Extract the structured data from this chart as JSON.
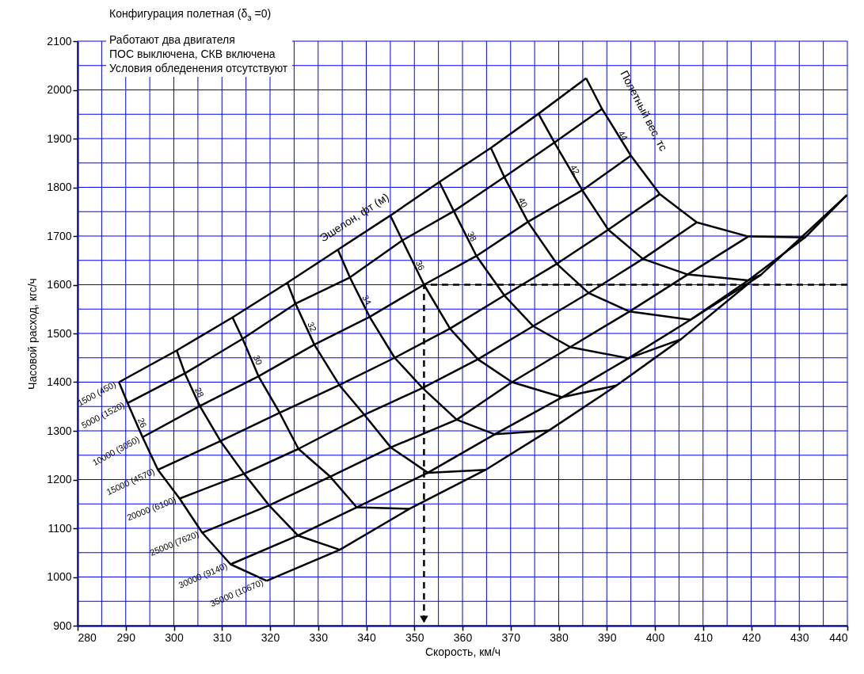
{
  "chart_data": {
    "type": "line",
    "title": "Конфигурация полетная (δ$_{з}$ =0)",
    "subtitle": "Работают два двигателя\nПОС выключена, СКВ включена\nУсловия обледенения отсутствуют",
    "xlabel": "Скорость, км/ч",
    "ylabel": "Часовой расход, кгс/ч",
    "xlim": [
      280,
      440
    ],
    "ylim": [
      900,
      2100
    ],
    "xticks": [
      280,
      {
        "value": 285,
        "label": null
      },
      290,
      {
        "value": 295,
        "label": null
      },
      300,
      {
        "value": 305,
        "label": null
      },
      310,
      {
        "value": 315,
        "label": null
      },
      320,
      {
        "value": 325,
        "label": null
      },
      330,
      {
        "value": 335,
        "label": null
      },
      340,
      {
        "value": 345,
        "label": null
      },
      350,
      {
        "value": 355,
        "label": null
      },
      360,
      {
        "value": 365,
        "label": null
      },
      370,
      {
        "value": 375,
        "label": null
      },
      380,
      {
        "value": 385,
        "label": null
      },
      390,
      {
        "value": 395,
        "label": null
      },
      400,
      {
        "value": 405,
        "label": null
      },
      410,
      {
        "value": 415,
        "label": null
      },
      420,
      {
        "value": 425,
        "label": null
      },
      430,
      {
        "value": 435,
        "label": null
      },
      440
    ],
    "yticks": [
      900,
      {
        "value": 950,
        "label": null
      },
      1000,
      {
        "value": 1050,
        "label": null
      },
      1100,
      {
        "value": 1150,
        "label": null
      },
      1200,
      {
        "value": 1250,
        "label": null
      },
      1300,
      {
        "value": 1350,
        "label": null
      },
      1400,
      {
        "value": 1450,
        "label": null
      },
      1500,
      {
        "value": 1550,
        "label": null
      },
      1600,
      {
        "value": 1650,
        "label": null
      },
      1700,
      {
        "value": 1750,
        "label": null
      },
      1800,
      {
        "value": 1850,
        "label": null
      },
      1900,
      {
        "value": 1950,
        "label": null
      },
      2000,
      {
        "value": 2050,
        "label": null
      },
      2100
    ],
    "grid": true,
    "legend": false,
    "annotations": [
      "Эшелон, фт (м)",
      "Полетный вес, тс"
    ],
    "series": [
      {
        "name": "1500 (450)",
        "color": "#000000",
        "x": [
          288.6,
          300.6,
          312.2,
          323.6,
          334.1,
          345.0,
          355.2,
          365.9,
          375.8,
          385.7
        ],
        "values": [
          1400,
          1465,
          1533,
          1604,
          1672,
          1742,
          1811,
          1881,
          1951,
          2024
        ]
      },
      {
        "name": "5000 (1520)",
        "color": "#000000",
        "x": [
          290.4,
          302.3,
          314.3,
          325.3,
          336.6,
          347.5,
          358.2,
          368.7,
          379.1,
          389.0
        ],
        "values": [
          1357,
          1418,
          1489,
          1561,
          1615,
          1691,
          1751,
          1821,
          1892,
          1961
        ]
      },
      {
        "name": "10000 (3050)",
        "color": "#000000",
        "x": [
          293.5,
          305.4,
          317.6,
          329.2,
          340.7,
          352,
          362.9,
          373.6,
          384.9,
          395.0
        ],
        "values": [
          1287,
          1351,
          1412,
          1477,
          1534,
          1600,
          1659,
          1729,
          1794,
          1865
        ]
      },
      {
        "name": "15000 (4570)",
        "color": "#000000",
        "x": [
          296.7,
          309.7,
          322.0,
          334.4,
          345.9,
          357.4,
          368.7,
          379.6,
          390.3,
          401.0
        ],
        "values": [
          1220,
          1279,
          1337,
          1394,
          1450,
          1510,
          1578,
          1643,
          1713,
          1786
        ]
      },
      {
        "name": "20000 (6100)",
        "color": "#000000",
        "x": [
          301.2,
          314.6,
          325.9,
          339.6,
          351.7,
          363.2,
          374.7,
          386.2,
          397.5,
          408.7
        ],
        "values": [
          1161,
          1212,
          1263,
          1333,
          1388,
          1447,
          1515,
          1583,
          1653,
          1728
        ]
      },
      {
        "name": "25000 (7620)",
        "color": "#000000",
        "x": [
          305.9,
          319.8,
          332.5,
          345.1,
          358.8,
          370.3,
          382.4,
          394.7,
          406.8,
          419.4
        ],
        "values": [
          1091,
          1147,
          1206,
          1266,
          1323,
          1400,
          1472,
          1545,
          1621,
          1699
        ]
      },
      {
        "name": "30000 (9140)",
        "color": "#000000",
        "x": [
          311.8,
          325.8,
          338,
          352.8,
          366.7,
          380.7,
          394.5,
          407.4,
          419.4,
          431.2
        ],
        "values": [
          1026,
          1085,
          1143,
          1214,
          1293,
          1369,
          1449,
          1528,
          1609,
          1697
        ]
      },
      {
        "name": "35000 (10670)",
        "color": "#000000",
        "x": [
          319.3,
          334.5,
          349,
          364.8,
          378.0,
          392.0,
          405.4,
          420.0,
          422,
          439.9
        ],
        "values": [
          992,
          1056,
          1140,
          1220,
          1301,
          1393,
          1488,
          1607,
          1620,
          1784
        ]
      },
      {
        "name": "26",
        "color": "#000000",
        "x": [
          288.6,
          290.4,
          293.5,
          296.7,
          301.2,
          305.9,
          311.8,
          319.3
        ],
        "values": [
          1400,
          1357,
          1287,
          1220,
          1161,
          1091,
          1026,
          992
        ]
      },
      {
        "name": "28",
        "color": "#000000",
        "x": [
          300.6,
          302.3,
          305.4,
          309.7,
          314.6,
          319.8,
          325.8,
          334.5
        ],
        "values": [
          1465,
          1418,
          1351,
          1279,
          1212,
          1147,
          1085,
          1056
        ]
      },
      {
        "name": "30",
        "color": "#000000",
        "x": [
          312.2,
          314.3,
          317.6,
          322.0,
          325.9,
          332.5,
          338,
          349
        ],
        "values": [
          1533,
          1489,
          1412,
          1337,
          1263,
          1206,
          1143,
          1140
        ]
      },
      {
        "name": "32",
        "color": "#000000",
        "x": [
          323.6,
          325.3,
          329.2,
          334.4,
          339.6,
          345.1,
          352.8,
          364.8
        ],
        "values": [
          1604,
          1561,
          1477,
          1394,
          1333,
          1266,
          1214,
          1220
        ]
      },
      {
        "name": "34",
        "color": "#000000",
        "x": [
          334.1,
          336.6,
          340.7,
          345.9,
          351.7,
          358.8,
          366.7,
          378.0
        ],
        "values": [
          1672,
          1615,
          1534,
          1450,
          1388,
          1323,
          1293,
          1301
        ]
      },
      {
        "name": "36",
        "color": "#000000",
        "x": [
          345.0,
          347.5,
          352,
          357.4,
          363.2,
          370.3,
          380.7,
          392.0
        ],
        "values": [
          1742,
          1691,
          1600,
          1510,
          1447,
          1400,
          1369,
          1393
        ]
      },
      {
        "name": "38",
        "color": "#000000",
        "x": [
          355.2,
          358.2,
          362.9,
          368.7,
          374.7,
          382.4,
          394.5,
          405.4
        ],
        "values": [
          1811,
          1751,
          1659,
          1578,
          1515,
          1472,
          1449,
          1488
        ]
      },
      {
        "name": "40",
        "color": "#000000",
        "x": [
          365.9,
          368.7,
          373.6,
          379.6,
          386.2,
          394.7,
          407.4,
          420.0
        ],
        "values": [
          1881,
          1821,
          1729,
          1643,
          1583,
          1545,
          1528,
          1607
        ]
      },
      {
        "name": "42",
        "color": "#000000",
        "x": [
          375.8,
          379.1,
          384.9,
          390.3,
          397.5,
          406.8,
          419.4,
          422
        ],
        "values": [
          1951,
          1892,
          1794,
          1713,
          1653,
          1621,
          1609,
          1620
        ]
      },
      {
        "name": "44",
        "color": "#000000",
        "x": [
          385.7,
          389.0,
          395.0,
          401.0,
          408.7,
          419.4,
          431.2,
          439.9
        ],
        "values": [
          2024,
          1961,
          1865,
          1786,
          1728,
          1699,
          1697,
          1784
        ]
      },
      {
        "color": "#000000",
        "line_style": "dashed",
        "x": [
          440,
          352,
          352
        ],
        "values": [
          1600,
          1600,
          900
        ]
      }
    ]
  }
}
